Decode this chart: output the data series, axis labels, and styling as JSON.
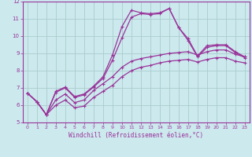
{
  "xlabel": "Windchill (Refroidissement éolien,°C)",
  "bg_color": "#cce9ee",
  "grid_color": "#aacccc",
  "line_color": "#993399",
  "xlim": [
    -0.5,
    23.5
  ],
  "ylim": [
    5,
    12
  ],
  "xticks": [
    0,
    1,
    2,
    3,
    4,
    5,
    6,
    7,
    8,
    9,
    10,
    11,
    12,
    13,
    14,
    15,
    16,
    17,
    18,
    19,
    20,
    21,
    22,
    23
  ],
  "yticks": [
    5,
    6,
    7,
    8,
    9,
    10,
    11,
    12
  ],
  "line1_x": [
    0,
    1,
    2,
    3,
    4,
    5,
    6,
    7,
    8,
    9,
    10,
    11,
    12,
    13,
    14,
    15,
    16,
    17,
    18,
    19,
    20,
    21,
    22,
    23
  ],
  "line1_y": [
    6.7,
    6.2,
    5.45,
    6.8,
    7.05,
    6.5,
    6.65,
    7.1,
    7.65,
    8.9,
    10.55,
    11.5,
    11.35,
    11.3,
    11.35,
    11.6,
    10.5,
    9.85,
    8.85,
    9.45,
    9.5,
    9.5,
    9.1,
    8.8
  ],
  "line2_x": [
    0,
    1,
    2,
    3,
    4,
    5,
    6,
    7,
    8,
    9,
    10,
    11,
    12,
    13,
    14,
    15,
    16,
    17,
    18,
    19,
    20,
    21,
    22,
    23
  ],
  "line2_y": [
    6.7,
    6.2,
    5.45,
    6.75,
    7.0,
    6.45,
    6.6,
    7.05,
    7.55,
    8.6,
    9.9,
    11.1,
    11.3,
    11.25,
    11.3,
    11.6,
    10.5,
    9.75,
    8.8,
    9.35,
    9.45,
    9.45,
    9.05,
    8.75
  ],
  "line3_x": [
    0,
    1,
    2,
    3,
    4,
    5,
    6,
    7,
    8,
    9,
    10,
    11,
    12,
    13,
    14,
    15,
    16,
    17,
    18,
    19,
    20,
    21,
    22,
    23
  ],
  "line3_y": [
    6.7,
    6.2,
    5.45,
    6.3,
    6.65,
    6.15,
    6.3,
    6.85,
    7.25,
    7.65,
    8.2,
    8.55,
    8.7,
    8.8,
    8.9,
    9.0,
    9.05,
    9.1,
    8.9,
    9.1,
    9.2,
    9.2,
    8.95,
    8.8
  ],
  "line4_x": [
    0,
    1,
    2,
    3,
    4,
    5,
    6,
    7,
    8,
    9,
    10,
    11,
    12,
    13,
    14,
    15,
    16,
    17,
    18,
    19,
    20,
    21,
    22,
    23
  ],
  "line4_y": [
    6.7,
    6.2,
    5.45,
    6.0,
    6.3,
    5.85,
    5.95,
    6.45,
    6.8,
    7.15,
    7.65,
    8.0,
    8.2,
    8.3,
    8.45,
    8.55,
    8.6,
    8.65,
    8.5,
    8.65,
    8.75,
    8.75,
    8.55,
    8.45
  ]
}
